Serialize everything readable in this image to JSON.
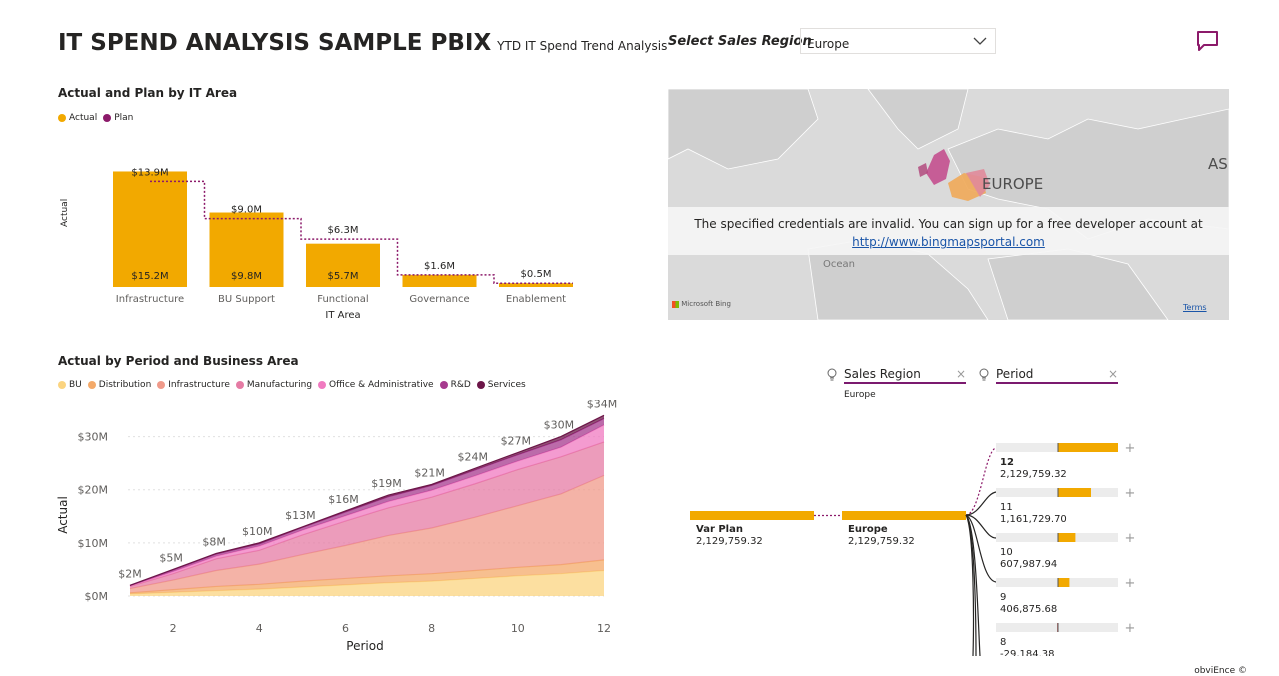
{
  "header": {
    "title": "IT SPEND ANALYSIS SAMPLE PBIX",
    "subtitle": "YTD IT Spend Trend Analysis"
  },
  "slicer": {
    "label": "Select Sales Region",
    "selected": "Europe"
  },
  "icons": {
    "comment": "comment-icon",
    "dropdown": "chevron-down-icon",
    "lightbulb": "lightbulb-icon",
    "clear": "close-icon",
    "expand": "plus-icon"
  },
  "colors": {
    "actual": "#F2A900",
    "plan": "#8C1A6A",
    "accent": "#7B1A6F"
  },
  "chart1": {
    "title": "Actual and Plan by IT Area",
    "legend": [
      "Actual",
      "Plan"
    ],
    "ylabel": "Actual",
    "xlabel": "IT Area",
    "xlabel_line1": "Functional",
    "xlabel_line2": "IT Area"
  },
  "chart2": {
    "title": "Actual by Period and Business Area",
    "legend": [
      "BU",
      "Distribution",
      "Infrastructure",
      "Manufacturing",
      "Office & Administrative",
      "R&D",
      "Services"
    ],
    "ylabel": "Actual",
    "xlabel": "Period"
  },
  "map": {
    "region_label": "EUROPE",
    "asia_label": "AS",
    "ocean_label": "Ocean",
    "error_text": "The specified credentials are invalid. You can sign up for a free developer account at",
    "error_link": "http://www.bingmapsportal.com",
    "attribution": "Microsoft Bing",
    "terms": "Terms"
  },
  "decomp": {
    "filters": [
      {
        "label": "Sales Region",
        "value": "Europe"
      },
      {
        "label": "Period",
        "value": ""
      }
    ],
    "root": {
      "label": "Var Plan",
      "value": "2,129,759.32"
    },
    "level1": {
      "label": "Europe",
      "value": "2,129,759.32"
    },
    "periods": [
      {
        "label": "12",
        "value": "2,129,759.32",
        "fraction": 1.0
      },
      {
        "label": "11",
        "value": "1,161,729.70",
        "fraction": 0.55
      },
      {
        "label": "10",
        "value": "607,987.94",
        "fraction": 0.29
      },
      {
        "label": "9",
        "value": "406,875.68",
        "fraction": 0.19
      },
      {
        "label": "8",
        "value": "-29,184.38",
        "fraction": -0.014
      }
    ]
  },
  "footer": "obviEnce ©",
  "chart_data": [
    {
      "type": "bar",
      "title": "Actual and Plan by IT Area",
      "categories": [
        "Infrastructure",
        "BU Support",
        "Functional IT Area",
        "Governance",
        "Enablement"
      ],
      "series": [
        {
          "name": "Actual",
          "values": [
            15.2,
            9.8,
            5.7,
            1.6,
            0.5
          ],
          "labels": [
            "$15.2M",
            "$9.8M",
            "$5.7M",
            "$1.6M",
            "$0.5M"
          ]
        },
        {
          "name": "Plan",
          "values": [
            13.9,
            9.0,
            6.3,
            1.6,
            0.5
          ],
          "labels": [
            "$13.9M",
            "$9.0M",
            "$6.3M",
            "$1.6M",
            "$0.5M"
          ]
        }
      ],
      "xlabel": "IT Area",
      "ylabel": "Actual"
    },
    {
      "type": "area",
      "title": "Actual by Period and Business Area",
      "x": [
        1,
        2,
        3,
        4,
        5,
        6,
        7,
        8,
        9,
        10,
        11,
        12
      ],
      "xticks": [
        2,
        4,
        6,
        8,
        10,
        12
      ],
      "yticks": [
        "$0M",
        "$10M",
        "$20M",
        "$30M"
      ],
      "ylim": [
        0,
        35
      ],
      "xlabel": "Period",
      "ylabel": "Actual",
      "totals_labels": [
        "$2M",
        "$5M",
        "$8M",
        "$10M",
        "$13M",
        "$16M",
        "$19M",
        "$21M",
        "$24M",
        "$27M",
        "$30M",
        "$34M"
      ],
      "totals": [
        2,
        5,
        8,
        10,
        13,
        16,
        19,
        21,
        24,
        27,
        30,
        34
      ],
      "series": [
        {
          "name": "BU",
          "color": "#FBD480",
          "values": [
            0.4,
            0.7,
            1.0,
            1.3,
            1.7,
            2.1,
            2.5,
            2.8,
            3.3,
            3.8,
            4.2,
            4.8
          ]
        },
        {
          "name": "Distribution",
          "color": "#F4AA6A",
          "values": [
            0.2,
            0.5,
            0.8,
            0.9,
            1.1,
            1.2,
            1.3,
            1.4,
            1.5,
            1.6,
            1.7,
            2.0
          ]
        },
        {
          "name": "Infrastructure",
          "color": "#F09A8A",
          "values": [
            0.8,
            1.8,
            3.0,
            3.8,
            5.0,
            6.2,
            7.6,
            8.6,
            10.0,
            11.6,
            13.3,
            15.9
          ]
        },
        {
          "name": "Manufacturing",
          "color": "#E57BA4",
          "values": [
            0.4,
            1.2,
            2.2,
            2.6,
            3.7,
            4.6,
            5.2,
            5.8,
            6.3,
            6.8,
            7.0,
            6.3
          ]
        },
        {
          "name": "Office & Administrative",
          "color": "#F07AC0",
          "values": [
            0.1,
            0.4,
            0.5,
            0.8,
            0.9,
            1.0,
            1.2,
            1.3,
            1.5,
            1.6,
            1.8,
            3.2
          ]
        },
        {
          "name": "R&D",
          "color": "#A63A8E",
          "values": [
            0.06,
            0.3,
            0.4,
            0.4,
            0.5,
            0.7,
            0.9,
            0.9,
            1.1,
            1.2,
            1.4,
            1.2
          ]
        },
        {
          "name": "Services",
          "color": "#6C1648",
          "values": [
            0.04,
            0.1,
            0.1,
            0.2,
            0.1,
            0.2,
            0.3,
            0.2,
            0.3,
            0.4,
            0.6,
            0.6
          ]
        }
      ]
    }
  ]
}
